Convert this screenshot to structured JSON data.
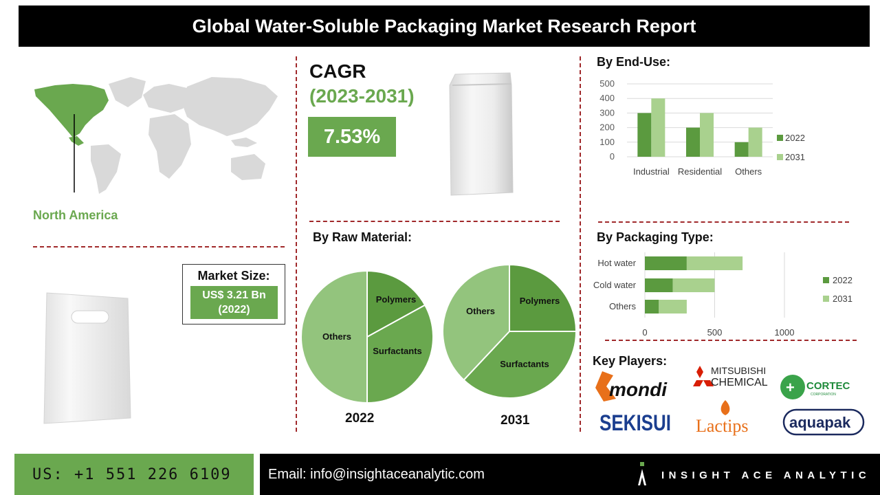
{
  "header": {
    "title": "Global Water-Soluble Packaging Market Research Report"
  },
  "region": {
    "label": "North America"
  },
  "cagr": {
    "title": "CAGR",
    "period": "(2023-2031)",
    "value": "7.53%"
  },
  "market_size": {
    "title": "Market Size:",
    "value_line1": "US$ 3.21 Bn",
    "value_line2": "(2022)"
  },
  "sections": {
    "end_use": "By End-Use:",
    "raw_material": "By Raw Material:",
    "packaging_type": "By Packaging Type:",
    "key_players": "Key Players:"
  },
  "key_players": [
    "mondi",
    "MITSUBISHI CHEMICAL",
    "CORTEC CORPORATION",
    "SEKISUI",
    "Lactips",
    "aquapak"
  ],
  "footer": {
    "phone": "US: +1 551 226 6109",
    "email": "Email: info@insightaceanalytic.com",
    "brand": "INSIGHT ACE ANALYTIC"
  },
  "colors": {
    "accent": "#6aa84f",
    "dark_green": "#5b9a3f",
    "light_green": "#a9d18e",
    "divider": "#a0282a"
  },
  "chart_data": [
    {
      "type": "bar",
      "title": "By End-Use:",
      "categories": [
        "Industrial",
        "Residential",
        "Others"
      ],
      "series": [
        {
          "name": "2022",
          "values": [
            300,
            200,
            100
          ]
        },
        {
          "name": "2031",
          "values": [
            400,
            300,
            200
          ]
        }
      ],
      "ylim": [
        0,
        500
      ],
      "yticks": [
        "0",
        "100",
        "200",
        "300",
        "400",
        "500"
      ],
      "grid": true,
      "legend": "right"
    },
    {
      "type": "pie",
      "title": "By Raw Material:",
      "caption": "2022",
      "labels": [
        "Polymers",
        "Surfactants",
        "Others"
      ],
      "values": [
        17,
        33,
        50
      ]
    },
    {
      "type": "pie",
      "caption": "2031",
      "labels": [
        "Polymers",
        "Surfactants",
        "Others"
      ],
      "values": [
        25,
        37,
        38
      ]
    },
    {
      "type": "bar",
      "orientation": "horizontal",
      "stacked": true,
      "title": "By Packaging Type:",
      "categories": [
        "Hot water",
        "Cold water",
        "Others"
      ],
      "series": [
        {
          "name": "2022",
          "values": [
            300,
            200,
            100
          ]
        },
        {
          "name": "2031",
          "values": [
            400,
            300,
            200
          ]
        }
      ],
      "xlim": [
        0,
        1000
      ],
      "xticks": [
        "0",
        "500",
        "1000"
      ],
      "legend": "right"
    }
  ]
}
